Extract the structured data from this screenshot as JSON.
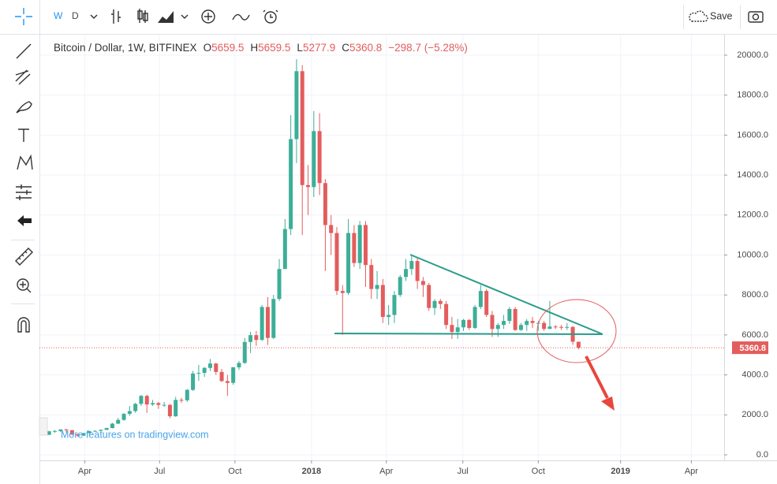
{
  "toolbar": {
    "intervals": [
      "W",
      "D"
    ],
    "save": "Save"
  },
  "watermark": "More features on tradingview.com",
  "chart_data": {
    "type": "candlestick",
    "title": "Bitcoin / Dollar, 1W, BITFINEX",
    "ohlc_labels": [
      "O",
      "H",
      "L",
      "C"
    ],
    "change": "−298.7 (−5.28%)",
    "up_color": "#3dae98",
    "down_color": "#e35d5d",
    "categories": [
      null,
      null,
      null,
      null,
      null,
      null,
      null,
      null,
      null,
      null,
      null,
      null,
      null,
      null,
      null,
      null,
      null,
      null,
      null,
      null,
      null,
      null,
      null,
      null,
      null,
      null,
      null,
      null,
      null,
      null,
      null,
      null,
      null,
      null,
      null,
      null,
      null,
      null,
      null,
      null,
      null,
      null,
      null,
      null,
      null,
      null,
      null,
      null,
      null,
      null,
      null,
      null,
      null,
      null,
      null,
      null,
      null,
      null,
      null,
      null,
      null,
      null,
      null,
      null,
      null,
      null,
      null,
      null,
      null,
      null,
      null,
      null,
      null,
      null,
      null,
      null,
      null,
      null,
      null,
      null,
      null,
      null,
      null,
      null,
      null,
      null,
      null,
      null,
      null,
      null,
      null,
      null,
      null
    ],
    "open": [
      1000,
      1180,
      1190,
      1270,
      1230,
      1020,
      960,
      1090,
      1180,
      1200,
      1250,
      1340,
      1560,
      1750,
      2050,
      2190,
      2550,
      2950,
      2520,
      2590,
      2500,
      2500,
      1930,
      2750,
      2730,
      3250,
      4070,
      4100,
      4350,
      4570,
      4150,
      3690,
      3600,
      4380,
      4600,
      5650,
      5990,
      5750,
      7400,
      5850,
      7800,
      9300,
      11300,
      15800,
      19200,
      13500,
      13400,
      16200,
      13600,
      11500,
      11100,
      8200,
      8100,
      11100,
      9600,
      11500,
      9500,
      8300,
      8500,
      6900,
      7000,
      8000,
      8900,
      9300,
      9700,
      8700,
      8500,
      7350,
      7700,
      7550,
      6500,
      6150,
      6380,
      6750,
      6350,
      7400,
      8200,
      7000,
      6300,
      6500,
      6700,
      7300,
      6250,
      6500,
      6700,
      6600,
      6600,
      6300,
      6420,
      6400,
      6360,
      6400,
      5659.5
    ],
    "high": [
      1200,
      1250,
      1290,
      1300,
      1250,
      1060,
      1100,
      1200,
      1230,
      1270,
      1360,
      1600,
      1850,
      2100,
      2450,
      2600,
      3000,
      3000,
      2750,
      2650,
      2650,
      2550,
      2900,
      2850,
      3300,
      4200,
      4500,
      4400,
      4800,
      4600,
      4300,
      4000,
      4400,
      4700,
      5850,
      6150,
      6200,
      7500,
      7900,
      8000,
      9800,
      11800,
      17000,
      19800,
      19500,
      14500,
      17200,
      17100,
      13800,
      12000,
      11400,
      8500,
      11800,
      11500,
      11700,
      11700,
      9800,
      9200,
      8800,
      7500,
      8200,
      9000,
      9800,
      10000,
      9900,
      8900,
      8600,
      7800,
      7800,
      7700,
      6900,
      6800,
      6800,
      6800,
      7500,
      8500,
      8300,
      7200,
      6600,
      7000,
      7400,
      7400,
      6600,
      6800,
      6900,
      6700,
      6700,
      7700,
      6500,
      6500,
      6600,
      6450,
      5659.5
    ],
    "low": [
      990,
      1100,
      1140,
      1120,
      980,
      900,
      940,
      1060,
      1150,
      1170,
      1240,
      1320,
      1540,
      1700,
      1950,
      2100,
      2450,
      2100,
      2450,
      2300,
      2400,
      1830,
      1900,
      2600,
      2650,
      3200,
      3700,
      3900,
      4200,
      4000,
      3650,
      2950,
      3500,
      4250,
      4550,
      5100,
      5450,
      5700,
      5500,
      5800,
      7700,
      9300,
      11000,
      14600,
      11000,
      12000,
      12900,
      13000,
      9200,
      10000,
      8000,
      6000,
      8000,
      9400,
      9300,
      8400,
      7800,
      7800,
      6600,
      6500,
      6600,
      7900,
      8700,
      9000,
      8300,
      7900,
      7200,
      7000,
      7300,
      6300,
      5800,
      5800,
      6200,
      6250,
      6300,
      7300,
      6900,
      5900,
      5900,
      6300,
      6550,
      6200,
      6200,
      6200,
      6350,
      6200,
      6200,
      6300,
      6300,
      6250,
      6250,
      5500,
      5277.9
    ],
    "close": [
      1180,
      1190,
      1270,
      1230,
      1020,
      960,
      1090,
      1180,
      1200,
      1250,
      1340,
      1560,
      1750,
      2050,
      2190,
      2550,
      2950,
      2520,
      2590,
      2500,
      2500,
      1930,
      2750,
      2730,
      3250,
      4070,
      4100,
      4350,
      4570,
      4150,
      3690,
      3600,
      4380,
      4600,
      5650,
      5990,
      5750,
      7400,
      5850,
      7800,
      9300,
      11300,
      15800,
      19200,
      13500,
      13400,
      16200,
      13600,
      11500,
      11100,
      8200,
      8100,
      11100,
      9600,
      11500,
      9500,
      8300,
      8500,
      6900,
      7000,
      8000,
      8900,
      9300,
      9700,
      8700,
      8500,
      7350,
      7700,
      7550,
      6500,
      6150,
      6380,
      6750,
      6350,
      7400,
      8200,
      7000,
      6300,
      6500,
      6700,
      7300,
      6250,
      6500,
      6700,
      6600,
      6600,
      6300,
      6420,
      6400,
      6360,
      6400,
      5659.5,
      5360.8
    ],
    "xlim": [
      -0.3,
      117.3
    ],
    "xticks": [
      {
        "value": 6.2,
        "label": "Apr"
      },
      {
        "value": 19.2,
        "label": "Jul"
      },
      {
        "value": 32.3,
        "label": "Oct"
      },
      {
        "value": 45.6,
        "label": "2018"
      },
      {
        "value": 58.6,
        "label": "Apr"
      },
      {
        "value": 71.9,
        "label": "Jul"
      },
      {
        "value": 85.0,
        "label": "Oct"
      },
      {
        "value": 99.3,
        "label": "2019"
      },
      {
        "value": 111.6,
        "label": "Apr"
      }
    ],
    "ylim": [
      -276,
      21026
    ],
    "yticks": [
      {
        "value": 0,
        "label": "0.0"
      },
      {
        "value": 2000,
        "label": "2000.0"
      },
      {
        "value": 4000,
        "label": "4000.0"
      },
      {
        "value": 6000,
        "label": "6000.0"
      },
      {
        "value": 8000,
        "label": "8000.0"
      },
      {
        "value": 10000,
        "label": "10000.0"
      },
      {
        "value": 12000,
        "label": "12000.0"
      },
      {
        "value": 14000,
        "label": "14000.0"
      },
      {
        "value": 16000,
        "label": "16000.0"
      },
      {
        "value": 18000,
        "label": "18000.0"
      },
      {
        "value": 20000,
        "label": "20000.0"
      }
    ],
    "grid": true
  }
}
